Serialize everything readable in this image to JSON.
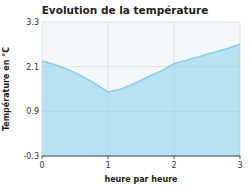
{
  "chart_data": {
    "type": "area",
    "title": "Evolution de la température",
    "xlabel": "heure par heure",
    "ylabel": "Température en °C",
    "x": [
      0,
      0.2,
      0.4,
      0.6,
      0.8,
      1.0,
      1.2,
      1.4,
      1.6,
      1.8,
      2.0,
      2.2,
      2.4,
      2.6,
      2.8,
      3.0
    ],
    "values": [
      2.25,
      2.15,
      2.02,
      1.85,
      1.65,
      1.42,
      1.5,
      1.65,
      1.82,
      1.98,
      2.18,
      2.28,
      2.38,
      2.48,
      2.58,
      2.7
    ],
    "color": "#87ceeb",
    "xlim": [
      0,
      3
    ],
    "ylim": [
      -0.3,
      3.3
    ],
    "xticks": [
      0,
      1,
      2,
      3
    ],
    "yticks": [
      -0.3,
      0.9,
      2.1,
      3.3
    ],
    "grid": true
  }
}
